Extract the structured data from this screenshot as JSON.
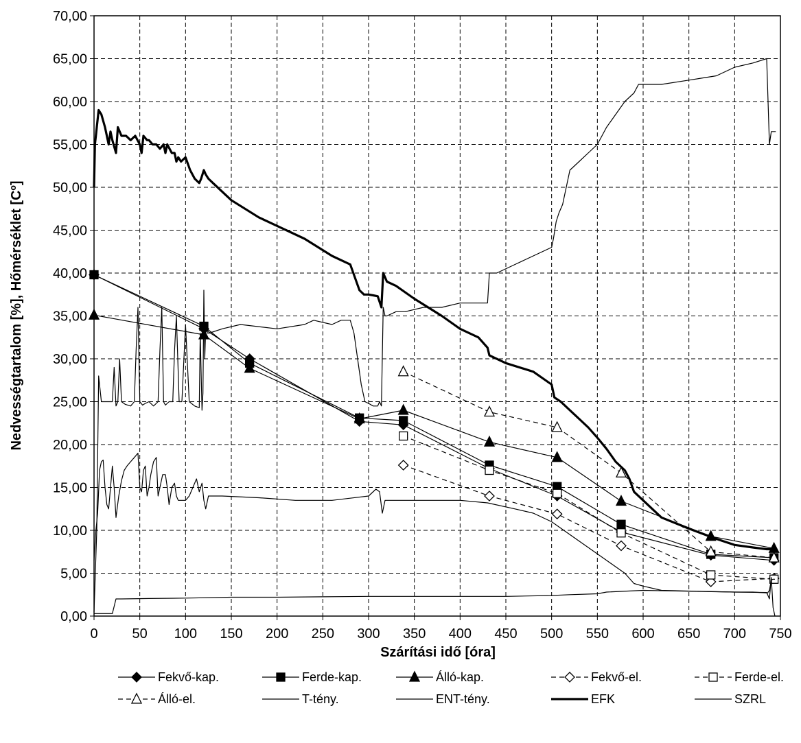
{
  "chart_data": {
    "type": "line",
    "xlabel": "Szárítási idő [óra]",
    "ylabel": "Nedvességtartalom [%], Hőmérséklet [Cº]",
    "xlim": [
      0,
      750
    ],
    "ylim": [
      0,
      70
    ],
    "xticks": [
      "0",
      "50",
      "100",
      "150",
      "200",
      "250",
      "300",
      "350",
      "400",
      "450",
      "500",
      "550",
      "600",
      "650",
      "700",
      "750"
    ],
    "yticks": [
      "0,00",
      "5,00",
      "10,00",
      "15,00",
      "20,00",
      "25,00",
      "30,00",
      "35,00",
      "40,00",
      "45,00",
      "50,00",
      "55,00",
      "60,00",
      "65,00",
      "70,00"
    ],
    "grid": "dashed",
    "legend_position": "bottom",
    "series": [
      {
        "name": "Fekvő-kap.",
        "style": "solid",
        "marker": "diamond-filled",
        "x": [
          0,
          120,
          170,
          290,
          338,
          432,
          506,
          576,
          674,
          743
        ],
        "y": [
          39.8,
          33.5,
          30.0,
          22.7,
          22.3,
          17.2,
          14.0,
          9.8,
          7.1,
          6.5
        ]
      },
      {
        "name": "Ferde-kap.",
        "style": "solid",
        "marker": "square-filled",
        "x": [
          0,
          120,
          170,
          290,
          338,
          432,
          506,
          576,
          674,
          743
        ],
        "y": [
          39.8,
          33.8,
          29.5,
          23.1,
          22.8,
          17.6,
          15.1,
          10.7,
          7.2,
          6.8
        ]
      },
      {
        "name": "Álló-kap.",
        "style": "solid",
        "marker": "triangle-filled",
        "x": [
          0,
          120,
          170,
          290,
          338,
          432,
          506,
          576,
          674,
          743
        ],
        "y": [
          35.1,
          32.8,
          28.9,
          23.0,
          24.0,
          20.3,
          18.5,
          13.4,
          9.3,
          7.9
        ]
      },
      {
        "name": "Fekvő-el.",
        "style": "dashed",
        "marker": "diamond-open",
        "x": [
          338,
          432,
          506,
          576,
          674,
          743
        ],
        "y": [
          17.6,
          14.0,
          11.9,
          8.2,
          4.0,
          4.4
        ]
      },
      {
        "name": "Ferde-el.",
        "style": "dashed",
        "marker": "square-open",
        "x": [
          338,
          432,
          506,
          576,
          674,
          743
        ],
        "y": [
          21.0,
          17.0,
          14.3,
          9.7,
          4.8,
          4.3
        ]
      },
      {
        "name": "Álló-el.",
        "style": "dashed",
        "marker": "triangle-open",
        "x": [
          338,
          432,
          506,
          576,
          674,
          743
        ],
        "y": [
          28.5,
          23.8,
          22.0,
          16.7,
          7.5,
          6.8
        ]
      },
      {
        "name": "T-tény.",
        "style": "thin",
        "x": [
          0,
          3,
          5,
          8,
          12,
          16,
          20,
          22,
          24,
          26,
          28,
          30,
          34,
          40,
          44,
          46,
          48,
          50,
          53,
          56,
          60,
          65,
          70,
          72,
          74,
          76,
          78,
          82,
          86,
          88,
          90,
          93,
          96,
          100,
          104,
          110,
          115,
          116,
          118,
          119,
          120,
          121,
          122,
          124,
          126,
          140,
          160,
          200,
          230,
          240,
          260,
          270,
          280,
          284,
          288,
          292,
          296,
          300,
          305,
          310,
          312,
          314,
          316,
          318,
          320,
          330,
          340,
          360,
          380,
          400,
          420,
          430,
          432,
          440,
          460,
          480,
          500,
          502,
          505,
          508,
          512,
          516,
          520,
          530,
          540,
          550,
          560,
          580,
          590,
          595,
          600,
          620,
          650,
          680,
          700,
          720,
          735,
          738,
          740,
          745
        ],
        "y": [
          0.5,
          10,
          28,
          25,
          25,
          25,
          25,
          29,
          24.5,
          25,
          30,
          25,
          24.7,
          24.5,
          25,
          31,
          36,
          25,
          24.6,
          24.8,
          25,
          24.5,
          25,
          31,
          36,
          25,
          24.6,
          25,
          25,
          31,
          35,
          25,
          25,
          34,
          25,
          24.5,
          24.3,
          33,
          24,
          26,
          38,
          30,
          33.5,
          33,
          33,
          33.5,
          34,
          33.5,
          34,
          34.5,
          34,
          34.5,
          34.5,
          33,
          30,
          27,
          25,
          24.8,
          24.5,
          24.5,
          25,
          24.5,
          36,
          35,
          35,
          35.5,
          35.5,
          36,
          36,
          36.5,
          36.5,
          36.5,
          40,
          40,
          41,
          42,
          43,
          44,
          46,
          47,
          48,
          50,
          52,
          53,
          54,
          55,
          57,
          60,
          61,
          62,
          62,
          62,
          62.5,
          63,
          64,
          64.5,
          65,
          55,
          56.5,
          56.5
        ]
      },
      {
        "name": "ENT-tény.",
        "style": "thin",
        "x": [
          0,
          2,
          4,
          6,
          8,
          10,
          12,
          14,
          16,
          18,
          20,
          22,
          24,
          27,
          30,
          33,
          36,
          40,
          44,
          48,
          50,
          52,
          54,
          56,
          58,
          60,
          62,
          65,
          68,
          70,
          72,
          75,
          78,
          80,
          82,
          85,
          88,
          90,
          92,
          95,
          100,
          104,
          108,
          112,
          115,
          118,
          120,
          122,
          125,
          140,
          180,
          220,
          260,
          300,
          308,
          312,
          315,
          318,
          330,
          400,
          430,
          460,
          480,
          500,
          520,
          540,
          560,
          580,
          590,
          600,
          620,
          660,
          700,
          720,
          736,
          738,
          740,
          742,
          744
        ],
        "y": [
          6.5,
          10,
          12,
          17,
          18,
          18.2,
          15,
          13,
          12.5,
          15,
          17.5,
          15,
          11.5,
          14,
          15.8,
          17,
          17.5,
          18,
          18.5,
          19,
          15,
          14.5,
          17,
          17.5,
          14,
          15,
          16.5,
          18,
          18.5,
          14,
          15,
          16.5,
          16.5,
          15,
          13,
          15,
          15.5,
          14,
          13.5,
          13.5,
          13.5,
          14,
          15,
          16,
          14.5,
          15.5,
          13.5,
          12.5,
          14,
          14,
          13.8,
          13.5,
          13.5,
          14,
          14.8,
          14.5,
          12,
          13.5,
          13.5,
          13.5,
          13.2,
          12.5,
          12,
          11,
          9.5,
          8,
          6.5,
          5,
          3.8,
          3.5,
          3.0,
          2.9,
          2.8,
          2.8,
          2.7,
          3,
          4.2,
          4.3,
          4.3
        ]
      },
      {
        "name": "EFK",
        "style": "thick",
        "x": [
          0,
          1,
          2,
          3,
          5,
          8,
          12,
          16,
          18,
          20,
          24,
          26,
          30,
          35,
          40,
          45,
          50,
          52,
          54,
          58,
          60,
          64,
          68,
          72,
          76,
          78,
          80,
          85,
          88,
          90,
          92,
          95,
          100,
          105,
          110,
          115,
          117,
          120,
          122,
          125,
          130,
          150,
          180,
          200,
          230,
          260,
          280,
          290,
          295,
          300,
          305,
          310,
          314,
          316,
          318,
          320,
          330,
          350,
          380,
          400,
          420,
          430,
          432,
          450,
          480,
          500,
          503,
          510,
          520,
          530,
          540,
          550,
          560,
          570,
          580,
          585,
          590,
          600,
          610,
          620,
          650,
          680,
          700,
          720,
          735,
          740
        ],
        "y": [
          50,
          55,
          56,
          57,
          59,
          58.5,
          57,
          55,
          56.5,
          55.5,
          54,
          57,
          56,
          56,
          55.5,
          56,
          55,
          54,
          56,
          55.5,
          55.5,
          55,
          55,
          54.5,
          55,
          54,
          55,
          54,
          54,
          53,
          53.5,
          53,
          53.5,
          52,
          51,
          50.5,
          51,
          52,
          51.5,
          51,
          50.5,
          48.5,
          46.5,
          45.5,
          44,
          42,
          41,
          38,
          37.5,
          37.5,
          37.4,
          37.3,
          36,
          40,
          39.5,
          39,
          38.5,
          37,
          35,
          33.5,
          32.5,
          31.3,
          30.4,
          29.5,
          28.5,
          27,
          25.5,
          25,
          24,
          23,
          22,
          20.8,
          19.5,
          18,
          17,
          16,
          14.5,
          13.5,
          12.5,
          11.5,
          10.2,
          9.0,
          8.3,
          8.0,
          7.8,
          7.8
        ]
      },
      {
        "name": "SZRL",
        "style": "thin",
        "x": [
          0,
          10,
          20,
          24,
          30,
          60,
          100,
          150,
          200,
          250,
          300,
          350,
          400,
          450,
          500,
          520,
          550,
          560,
          600,
          650,
          700,
          735,
          738,
          740,
          742,
          744
        ],
        "y": [
          0.3,
          0.3,
          0.3,
          2.0,
          2.0,
          2.05,
          2.1,
          2.2,
          2.2,
          2.25,
          2.3,
          2.3,
          2.3,
          2.3,
          2.4,
          2.5,
          2.6,
          2.8,
          3.0,
          2.9,
          2.8,
          2.75,
          2.0,
          4.5,
          1.0,
          0
        ]
      }
    ]
  }
}
